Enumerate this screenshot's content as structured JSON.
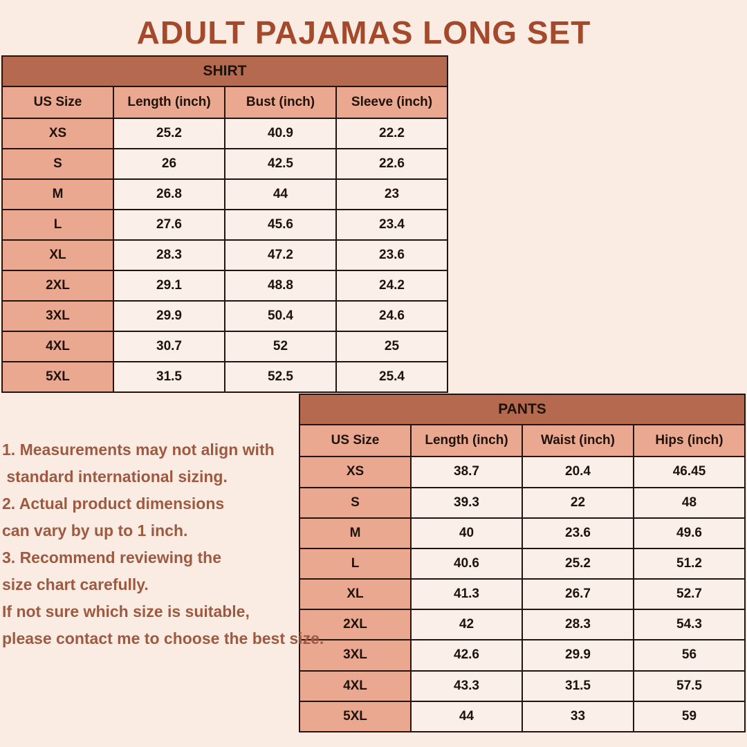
{
  "page": {
    "title": "ADULT PAJAMAS LONG SET"
  },
  "palette": {
    "background": "#fbece3",
    "title_text": "#a3492c",
    "table_title_bar": "#b5694f",
    "header_and_size_cells": "#e9a88f",
    "value_cells": "#fbf0e9",
    "table_border": "#241410",
    "notes_text": "#9d5a41"
  },
  "chart_data": [
    {
      "type": "table",
      "title": "SHIRT",
      "columns": [
        "US Size",
        "Length (inch)",
        "Bust (inch)",
        "Sleeve (inch)"
      ],
      "rows": [
        [
          "XS",
          "25.2",
          "40.9",
          "22.2"
        ],
        [
          "S",
          "26",
          "42.5",
          "22.6"
        ],
        [
          "M",
          "26.8",
          "44",
          "23"
        ],
        [
          "L",
          "27.6",
          "45.6",
          "23.4"
        ],
        [
          "XL",
          "28.3",
          "47.2",
          "23.6"
        ],
        [
          "2XL",
          "29.1",
          "48.8",
          "24.2"
        ],
        [
          "3XL",
          "29.9",
          "50.4",
          "24.6"
        ],
        [
          "4XL",
          "30.7",
          "52",
          "25"
        ],
        [
          "5XL",
          "31.5",
          "52.5",
          "25.4"
        ]
      ]
    },
    {
      "type": "table",
      "title": "PANTS",
      "columns": [
        "US Size",
        "Length (inch)",
        "Waist (inch)",
        "Hips (inch)"
      ],
      "rows": [
        [
          "XS",
          "38.7",
          "20.4",
          "46.45"
        ],
        [
          "S",
          "39.3",
          "22",
          "48"
        ],
        [
          "M",
          "40",
          "23.6",
          "49.6"
        ],
        [
          "L",
          "40.6",
          "25.2",
          "51.2"
        ],
        [
          "XL",
          "41.3",
          "26.7",
          "52.7"
        ],
        [
          "2XL",
          "42",
          "28.3",
          "54.3"
        ],
        [
          "3XL",
          "42.6",
          "29.9",
          "56"
        ],
        [
          "4XL",
          "43.3",
          "31.5",
          "57.5"
        ],
        [
          "5XL",
          "44",
          "33",
          "59"
        ]
      ]
    }
  ],
  "notes": {
    "lines": [
      "1. Measurements may not align with",
      " standard international sizing.",
      "2. Actual product dimensions",
      "can vary by up to 1 inch.",
      "3. Recommend reviewing the",
      "size chart carefully.",
      "If not sure which size is suitable,",
      "please contact me to choose the best size."
    ]
  }
}
